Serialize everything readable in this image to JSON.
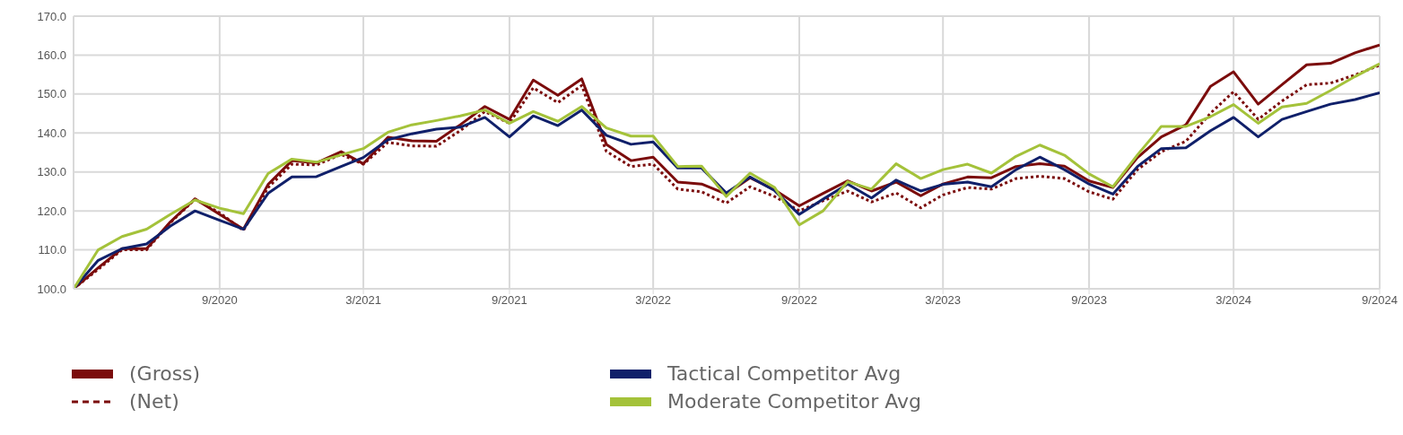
{
  "chart_data": {
    "type": "line",
    "x": [
      "2020-03",
      "2020-04",
      "2020-05",
      "2020-06",
      "2020-07",
      "2020-08",
      "2020-09",
      "2020-10",
      "2020-11",
      "2020-12",
      "2021-01",
      "2021-02",
      "2021-03",
      "2021-04",
      "2021-05",
      "2021-06",
      "2021-07",
      "2021-08",
      "2021-09",
      "2021-10",
      "2021-11",
      "2021-12",
      "2022-01",
      "2022-02",
      "2022-03",
      "2022-04",
      "2022-05",
      "2022-06",
      "2022-07",
      "2022-08",
      "2022-09",
      "2022-10",
      "2022-11",
      "2022-12",
      "2023-01",
      "2023-02",
      "2023-03",
      "2023-04",
      "2023-05",
      "2023-06",
      "2023-07",
      "2023-08",
      "2023-09",
      "2023-10",
      "2023-11",
      "2023-12",
      "2024-01",
      "2024-02",
      "2024-03",
      "2024-04",
      "2024-05",
      "2024-06",
      "2024-07",
      "2024-08",
      "2024-09"
    ],
    "series": [
      {
        "name": "(Gross)",
        "color": "#7b0c0c",
        "line_style": "solid",
        "values": [
          100,
          105.4,
          110.3,
          110.3,
          117.2,
          123.1,
          119.1,
          115.3,
          126.8,
          132.9,
          132.3,
          135.2,
          132.1,
          138.9,
          138,
          137.9,
          142.1,
          146.8,
          143.5,
          153.6,
          149.7,
          153.9,
          137.1,
          132.9,
          133.8,
          127.4,
          126.9,
          124.3,
          128.5,
          125.4,
          121.3,
          124.5,
          127.7,
          125.1,
          127.4,
          123.9,
          126.9,
          128.7,
          128.5,
          131.4,
          132.1,
          131.5,
          127.7,
          126,
          133.7,
          139,
          142.1,
          152,
          155.7,
          147.4,
          152.4,
          157.5,
          157.9,
          160.6,
          162.6
        ]
      },
      {
        "name": "(Net)",
        "color": "#7b0c0c",
        "line_style": "dotted",
        "values": [
          100,
          105,
          110,
          110,
          117,
          123,
          119.5,
          115,
          126,
          132,
          131.8,
          134.5,
          132,
          137.6,
          136.7,
          136.6,
          140.6,
          145.5,
          142.5,
          151.6,
          147.8,
          152.2,
          135.3,
          131.4,
          132,
          125.6,
          124.9,
          122,
          126.2,
          123.7,
          120,
          122.6,
          125.1,
          122.3,
          124.6,
          120.8,
          124.1,
          126,
          125.6,
          128.3,
          128.9,
          128.3,
          124.9,
          123,
          130.6,
          135.2,
          137.9,
          145.1,
          150.6,
          143.5,
          148.2,
          152.4,
          152.8,
          154.9,
          157.4
        ]
      },
      {
        "name": "Tactical Competitor Avg",
        "color": "#10206a",
        "line_style": "solid",
        "values": [
          100,
          107.3,
          110.3,
          111.5,
          116.1,
          120,
          117.6,
          115.3,
          124.5,
          128.7,
          128.8,
          131.4,
          133.7,
          138.3,
          139.8,
          141,
          141.5,
          144,
          139,
          144.4,
          141.9,
          145.9,
          139.4,
          137.1,
          137.7,
          131,
          131,
          124.6,
          128.7,
          125.2,
          119.1,
          123,
          126.9,
          123.3,
          127.9,
          125.1,
          126.8,
          127.4,
          126.2,
          130.6,
          133.8,
          130.6,
          126.9,
          124.3,
          131.4,
          136,
          136.2,
          140.6,
          144,
          139,
          143.5,
          145.5,
          147.4,
          148.6,
          150.3
        ]
      },
      {
        "name": "Moderate Competitor Avg",
        "color": "#a4c23a",
        "line_style": "solid",
        "values": [
          100,
          110,
          113.4,
          115.3,
          119.1,
          122.8,
          120.7,
          119.3,
          129.6,
          133.3,
          132.5,
          134.4,
          136,
          140.2,
          142.1,
          143.2,
          144.4,
          145.9,
          142.5,
          145.5,
          143,
          146.8,
          141.3,
          139.2,
          139.2,
          131.4,
          131.5,
          123.7,
          129.7,
          126,
          116.4,
          120,
          127.5,
          125.6,
          132.1,
          128.3,
          130.6,
          132,
          129.7,
          134,
          136.9,
          134.3,
          129.5,
          126.2,
          134.4,
          141.7,
          141.7,
          144.2,
          147.3,
          142.5,
          146.7,
          147.6,
          150.9,
          154.5,
          157.8
        ]
      }
    ],
    "xlim": [
      "2020-03",
      "2024-09"
    ],
    "xticks": [
      {
        "value": "2020-09",
        "label": "9/2020"
      },
      {
        "value": "2021-03",
        "label": "3/2021"
      },
      {
        "value": "2021-09",
        "label": "9/2021"
      },
      {
        "value": "2022-03",
        "label": "3/2022"
      },
      {
        "value": "2022-09",
        "label": "9/2022"
      },
      {
        "value": "2023-03",
        "label": "3/2023"
      },
      {
        "value": "2023-09",
        "label": "9/2023"
      },
      {
        "value": "2024-03",
        "label": "3/2024"
      },
      {
        "value": "2024-09",
        "label": "9/2024"
      }
    ],
    "ylim": [
      100,
      170
    ],
    "yticks": [
      {
        "value": 100,
        "label": "100.0"
      },
      {
        "value": 110,
        "label": "110.0"
      },
      {
        "value": 120,
        "label": "120.0"
      },
      {
        "value": 130,
        "label": "130.0"
      },
      {
        "value": 140,
        "label": "140.0"
      },
      {
        "value": 150,
        "label": "150.0"
      },
      {
        "value": 160,
        "label": "160.0"
      },
      {
        "value": 170,
        "label": "170.0"
      }
    ],
    "grid": true,
    "legend": "bottom",
    "marker": "none"
  }
}
